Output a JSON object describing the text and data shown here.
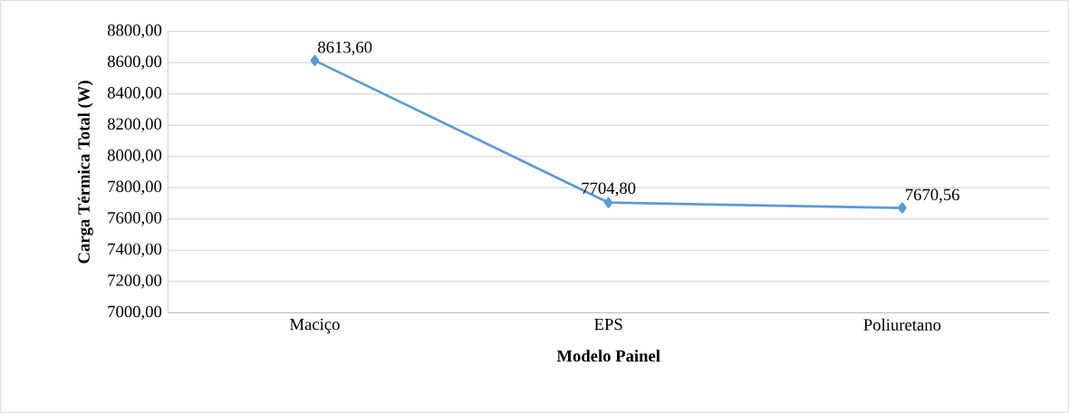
{
  "chart_data": {
    "type": "line",
    "xlabel": "Modelo Painel",
    "ylabel": "Carga Térmica Total (W)",
    "categories": [
      "Maciço",
      "EPS",
      "Poliuretano"
    ],
    "series": [
      {
        "color": "#5b9bd5",
        "values": [
          8613.6,
          7704.8,
          7670.56
        ],
        "value_labels": [
          "8613,60",
          "7704,80",
          "7670,56"
        ]
      }
    ],
    "ylim": [
      7000,
      8800
    ],
    "yticks": [
      {
        "value": 7000,
        "label": "7000,00"
      },
      {
        "value": 7200,
        "label": "7200,00"
      },
      {
        "value": 7400,
        "label": "7400,00"
      },
      {
        "value": 7600,
        "label": "7600,00"
      },
      {
        "value": 7800,
        "label": "7800,00"
      },
      {
        "value": 8000,
        "label": "8000,00"
      },
      {
        "value": 8200,
        "label": "8200,00"
      },
      {
        "value": 8400,
        "label": "8400,00"
      },
      {
        "value": 8600,
        "label": "8600,00"
      },
      {
        "value": 8800,
        "label": "8800,00"
      }
    ],
    "grid": "y",
    "marker": "diamond",
    "line_style": "solid"
  }
}
